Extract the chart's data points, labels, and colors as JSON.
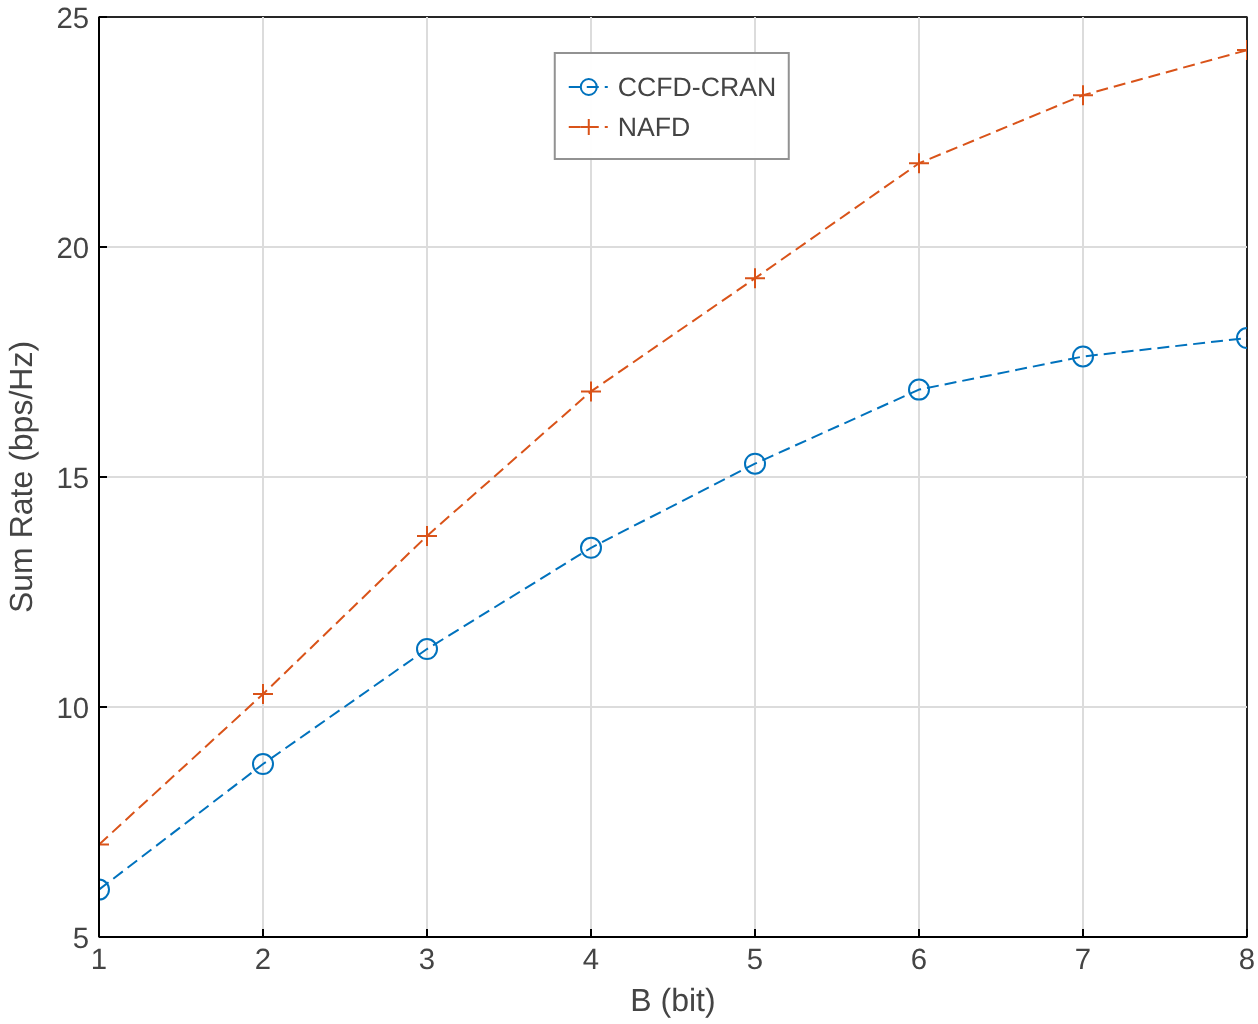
{
  "chart_data": {
    "type": "line",
    "xlabel": "B (bit)",
    "ylabel": "Sum Rate (bps/Hz)",
    "x": [
      1,
      2,
      3,
      4,
      5,
      6,
      7,
      8
    ],
    "series": [
      {
        "name": "CCFD-CRAN",
        "color": "#0072bd",
        "marker": "circle",
        "values": [
          6.03,
          8.76,
          11.26,
          13.46,
          15.29,
          16.9,
          17.62,
          18.02
        ]
      },
      {
        "name": "NAFD",
        "color": "#d95319",
        "marker": "cross",
        "values": [
          7.01,
          10.28,
          13.72,
          16.86,
          19.32,
          21.82,
          23.3,
          24.28
        ]
      }
    ],
    "xlim": [
      1,
      8
    ],
    "ylim": [
      5,
      25
    ],
    "xticks": [
      1,
      2,
      3,
      4,
      5,
      6,
      7,
      8
    ],
    "yticks": [
      5,
      10,
      15,
      20,
      25
    ],
    "grid": true,
    "legend": "top",
    "line_style": "dashed"
  }
}
